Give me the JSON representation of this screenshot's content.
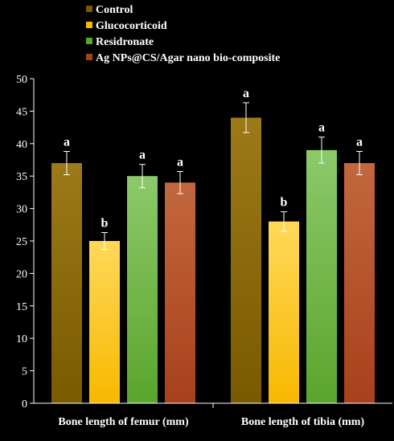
{
  "chart_data": {
    "type": "bar",
    "title": "",
    "xlabel": "",
    "ylabel": "",
    "ylim": [
      0,
      50
    ],
    "y_ticks": [
      0,
      5,
      10,
      15,
      20,
      25,
      30,
      35,
      40,
      45,
      50
    ],
    "grid": false,
    "legend_position": "top",
    "categories": [
      "Bone length of femur (mm)",
      "Bone length of tibia (mm)"
    ],
    "series": [
      {
        "name": "Control",
        "color": "#7a5a00",
        "color_light": "#9c7a18",
        "values": [
          37,
          44
        ],
        "errors": [
          1.8,
          2.3
        ],
        "letters": [
          "a",
          "a"
        ]
      },
      {
        "name": "Glucocorticoid",
        "color": "#f7b800",
        "color_light": "#ffd95a",
        "values": [
          25,
          28
        ],
        "errors": [
          1.3,
          1.5
        ],
        "letters": [
          "b",
          "b"
        ]
      },
      {
        "name": "Residronate",
        "color": "#5aa52c",
        "color_light": "#8cc96a",
        "values": [
          35,
          39
        ],
        "errors": [
          1.8,
          2.0
        ],
        "letters": [
          "a",
          "a"
        ]
      },
      {
        "name": "Ag NPs@CS/Agar nano bio-composite",
        "color": "#a8401c",
        "color_light": "#c2673e",
        "values": [
          34,
          37
        ],
        "errors": [
          1.7,
          1.8
        ],
        "letters": [
          "a",
          "a"
        ]
      }
    ]
  }
}
